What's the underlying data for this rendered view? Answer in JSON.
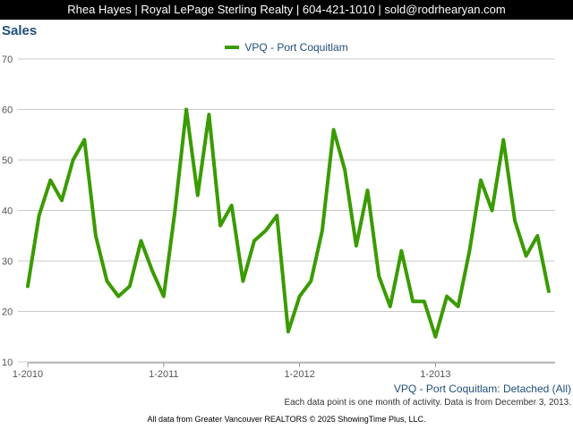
{
  "header": {
    "text": "Rhea Hayes | Royal LePage Sterling Realty | 604-421-1010 | sold@rodrhearyan.com"
  },
  "chart_data": {
    "type": "line",
    "title": "Sales",
    "legend": {
      "placement": "top-center"
    },
    "grid": true,
    "ylim": [
      10,
      70
    ],
    "y_ticks": [
      "10",
      "20",
      "30",
      "40",
      "50",
      "60",
      "70"
    ],
    "x_ticks": [
      "1-2010",
      "1-2011",
      "1-2012",
      "1-2013"
    ],
    "series": [
      {
        "name": "VPQ - Port Coquitlam",
        "color": "#3a9b00",
        "start": "2010-01",
        "values": [
          25,
          39,
          46,
          42,
          50,
          54,
          35,
          26,
          23,
          25,
          34,
          28,
          23,
          40,
          60,
          43,
          59,
          37,
          41,
          26,
          34,
          36,
          39,
          16,
          23,
          26,
          36,
          56,
          48,
          33,
          44,
          27,
          21,
          32,
          22,
          22,
          15,
          23,
          21,
          32,
          46,
          40,
          54,
          38,
          31,
          35,
          24
        ]
      }
    ]
  },
  "series_label": "VPQ - Port Coquitlam: Detached (All)",
  "note": "Each data point is one month of activity. Data is from December 3, 2013.",
  "footer": "All data from Greater Vancouver REALTORS © 2025 ShowingTime Plus, LLC."
}
